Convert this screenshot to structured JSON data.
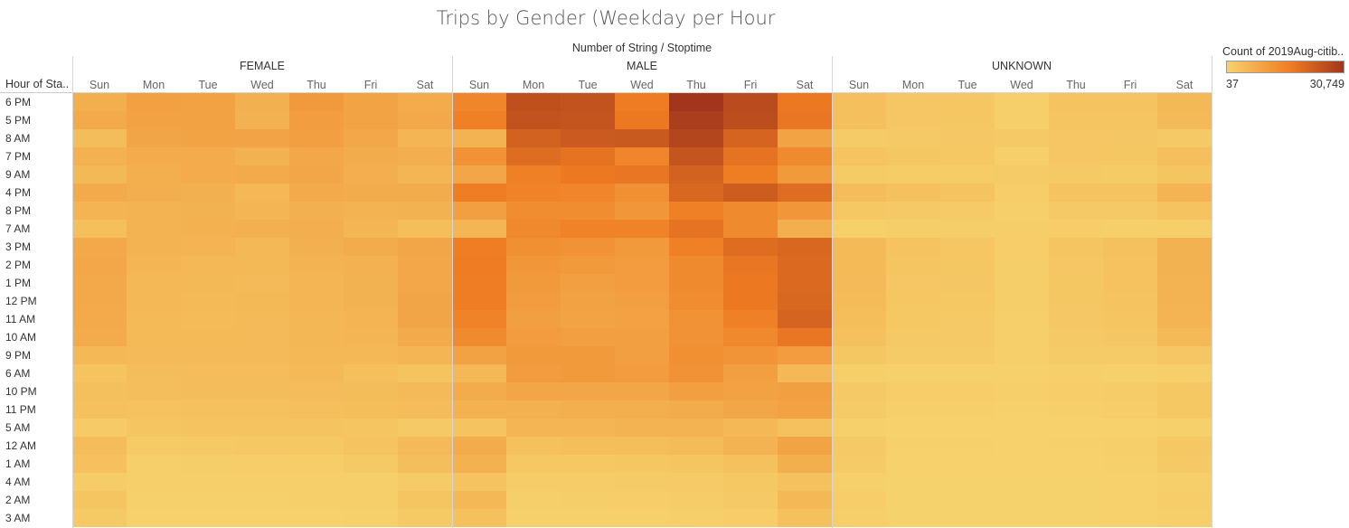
{
  "title": "Trips by Gender (Weekday per Hour",
  "subtitle": "Number of String / Stoptime",
  "row_header": "Hour of Sta..",
  "legend": {
    "title": "Count of 2019Aug-citib..",
    "min_label": "37",
    "max_label": "30,749",
    "colors": [
      "#f6d26d",
      "#ef7b22",
      "#a1361c"
    ]
  },
  "chart_data": {
    "type": "heatmap",
    "title": "Trips by Gender (Weekday per Hour",
    "column_title": "Number of String / Stoptime",
    "row_title": "Hour of Sta..",
    "groups": [
      "FEMALE",
      "MALE",
      "UNKNOWN"
    ],
    "days": [
      "Sun",
      "Mon",
      "Tue",
      "Wed",
      "Thu",
      "Fri",
      "Sat"
    ],
    "hours": [
      "6 PM",
      "5 PM",
      "8 AM",
      "7 PM",
      "9 AM",
      "4 PM",
      "8 PM",
      "7 AM",
      "3 PM",
      "2 PM",
      "1 PM",
      "12 PM",
      "11 AM",
      "10 AM",
      "9 PM",
      "6 AM",
      "10 PM",
      "11 PM",
      "5 AM",
      "12 AM",
      "1 AM",
      "4 AM",
      "2 AM",
      "3 AM"
    ],
    "color_range": [
      37,
      30749
    ],
    "values": {
      "FEMALE": [
        [
          7000,
          9700,
          9600,
          6600,
          10900,
          9000,
          7600
        ],
        [
          7800,
          9600,
          9400,
          6300,
          10300,
          9200,
          8100
        ],
        [
          4200,
          8700,
          9000,
          9100,
          10000,
          8400,
          5400
        ],
        [
          6400,
          7700,
          7600,
          6200,
          8400,
          7500,
          6800
        ],
        [
          4900,
          7100,
          7700,
          7800,
          8500,
          6800,
          5700
        ],
        [
          7900,
          6800,
          6600,
          5000,
          7800,
          7500,
          7400
        ],
        [
          5800,
          6100,
          6300,
          5400,
          6600,
          6100,
          6200
        ],
        [
          3800,
          6000,
          6500,
          6600,
          6800,
          5600,
          4000
        ],
        [
          8200,
          6100,
          5800,
          5100,
          6600,
          7400,
          8500
        ],
        [
          8400,
          5400,
          5000,
          4900,
          6000,
          6400,
          8400
        ],
        [
          8200,
          5100,
          4900,
          4800,
          5700,
          6300,
          8400
        ],
        [
          8100,
          5100,
          4700,
          4900,
          5700,
          6300,
          8700
        ],
        [
          7900,
          4700,
          4500,
          4600,
          5300,
          5800,
          8700
        ],
        [
          7700,
          4700,
          4700,
          4800,
          5300,
          5700,
          7900
        ],
        [
          5000,
          4800,
          4800,
          4600,
          5000,
          5000,
          5400
        ],
        [
          2900,
          4100,
          4400,
          4400,
          4600,
          3800,
          2700
        ],
        [
          3700,
          3900,
          4100,
          4100,
          4300,
          4200,
          4600
        ],
        [
          3400,
          3200,
          3300,
          3300,
          3800,
          4000,
          4300
        ],
        [
          1500,
          2600,
          2700,
          2800,
          2800,
          2500,
          1600
        ],
        [
          4300,
          1500,
          1800,
          1900,
          2000,
          2700,
          4600
        ],
        [
          3600,
          800,
          900,
          1000,
          1100,
          1600,
          3900
        ],
        [
          1200,
          600,
          600,
          600,
          700,
          800,
          1400
        ],
        [
          2600,
          400,
          400,
          500,
          600,
          800,
          2600
        ],
        [
          1700,
          200,
          300,
          300,
          300,
          500,
          1800
        ]
      ],
      "MALE": [
        [
          15000,
          25500,
          25000,
          17000,
          30749,
          26500,
          17500
        ],
        [
          16000,
          25000,
          24500,
          17500,
          29000,
          26000,
          18000
        ],
        [
          6000,
          22000,
          23500,
          23800,
          27500,
          21500,
          9000
        ],
        [
          12500,
          20000,
          18500,
          15000,
          24500,
          18500,
          14000
        ],
        [
          8500,
          16000,
          17500,
          18000,
          22000,
          16500,
          11000
        ],
        [
          16500,
          15500,
          15000,
          13000,
          21000,
          23000,
          20000
        ],
        [
          10000,
          13500,
          13500,
          11500,
          16000,
          14000,
          11500
        ],
        [
          5500,
          14500,
          15500,
          15500,
          18500,
          14000,
          7000
        ],
        [
          16500,
          13000,
          12500,
          11000,
          16000,
          20000,
          21000
        ],
        [
          17000,
          11500,
          11000,
          10500,
          14000,
          18000,
          20500
        ],
        [
          16500,
          11000,
          10000,
          10500,
          14000,
          17500,
          20500
        ],
        [
          16500,
          10500,
          9500,
          10000,
          13500,
          17500,
          21000
        ],
        [
          15500,
          10000,
          9000,
          9500,
          12500,
          16000,
          21500
        ],
        [
          14000,
          10500,
          10000,
          10000,
          12500,
          14500,
          18000
        ],
        [
          9500,
          11000,
          11000,
          10000,
          13000,
          12000,
          10500
        ],
        [
          5000,
          10500,
          11000,
          10500,
          12500,
          10000,
          5000
        ],
        [
          7500,
          8500,
          8500,
          8500,
          10000,
          9500,
          10000
        ],
        [
          6500,
          6500,
          7000,
          7000,
          7500,
          8500,
          9500
        ],
        [
          3000,
          5500,
          5500,
          6000,
          6000,
          5000,
          3500
        ],
        [
          7500,
          3500,
          4000,
          4000,
          4500,
          6000,
          9000
        ],
        [
          6500,
          2000,
          2000,
          2200,
          2500,
          3500,
          7000
        ],
        [
          3000,
          1200,
          1200,
          1300,
          1500,
          2000,
          3500
        ],
        [
          5000,
          800,
          900,
          1000,
          1200,
          1800,
          5000
        ],
        [
          3500,
          500,
          500,
          500,
          600,
          1000,
          3500
        ]
      ],
      "UNKNOWN": [
        [
          3800,
          2400,
          2300,
          700,
          2900,
          2900,
          4900
        ],
        [
          3700,
          2300,
          2200,
          700,
          2600,
          2600,
          4600
        ],
        [
          1400,
          1800,
          1900,
          1700,
          2400,
          2100,
          1700
        ],
        [
          2700,
          2200,
          2000,
          800,
          2400,
          2200,
          3800
        ],
        [
          1400,
          1200,
          1200,
          1300,
          1600,
          1400,
          2600
        ],
        [
          4400,
          3300,
          2900,
          1000,
          3000,
          2800,
          5900
        ],
        [
          2000,
          1600,
          1500,
          800,
          1600,
          1700,
          2900
        ],
        [
          500,
          900,
          900,
          900,
          1000,
          800,
          600
        ],
        [
          4800,
          2700,
          2400,
          1000,
          2500,
          3400,
          6300
        ],
        [
          4700,
          2500,
          2200,
          900,
          2300,
          3200,
          6300
        ],
        [
          4600,
          2300,
          2100,
          900,
          2200,
          3100,
          6100
        ],
        [
          4500,
          2200,
          2000,
          900,
          2100,
          3000,
          6000
        ],
        [
          4000,
          2000,
          1800,
          800,
          1900,
          2600,
          5800
        ],
        [
          3300,
          1700,
          1700,
          800,
          1800,
          2100,
          4700
        ],
        [
          2200,
          1400,
          1300,
          700,
          1400,
          1400,
          2400
        ],
        [
          700,
          500,
          500,
          400,
          600,
          500,
          800
        ],
        [
          1700,
          1000,
          1000,
          700,
          1000,
          1200,
          2000
        ],
        [
          1400,
          700,
          700,
          500,
          800,
          1100,
          2000
        ],
        [
          500,
          300,
          300,
          300,
          300,
          300,
          500
        ],
        [
          1700,
          400,
          400,
          300,
          500,
          800,
          2000
        ],
        [
          1400,
          200,
          200,
          200,
          300,
          500,
          1600
        ],
        [
          500,
          100,
          100,
          100,
          100,
          200,
          600
        ],
        [
          1000,
          100,
          100,
          100,
          100,
          300,
          1100
        ],
        [
          700,
          37,
          50,
          60,
          80,
          200,
          700
        ]
      ]
    }
  }
}
